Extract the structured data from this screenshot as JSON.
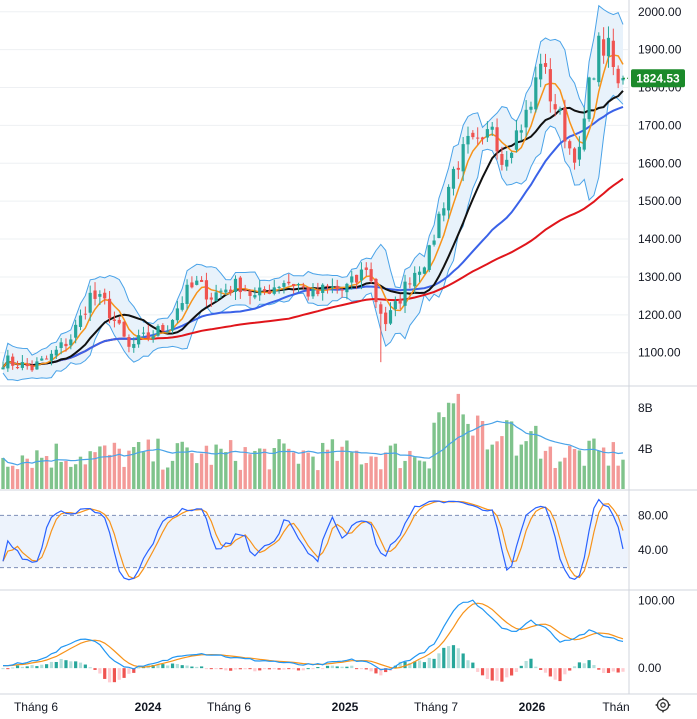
{
  "chart_data": {
    "type": "candlestick",
    "title": "",
    "colors": {
      "up": "#26a69a",
      "down": "#ef5350",
      "bb_line": "#4aa3e8",
      "bb_fill": "#e8f2fb",
      "ma_orange": "#f7931a",
      "ma_black": "#111111",
      "ma_blue": "#3a62e8",
      "ma_red": "#e0151b",
      "last_price_bg": "#1b8a2a",
      "grid": "#eef0f3",
      "separator": "#d1d4dc",
      "dashed": "#7e8fb7"
    },
    "price_axis": {
      "ticks": [
        "2000.00",
        "1900.00",
        "1800.00",
        "1700.00",
        "1600.00",
        "1500.00",
        "1400.00",
        "1300.00",
        "1200.00",
        "1100.00"
      ],
      "range": [
        1020,
        2010
      ]
    },
    "last_price": "1824.53",
    "time_axis": {
      "labels": [
        "Tháng 6",
        "2024",
        "Tháng 6",
        "2025",
        "Tháng 7",
        "2026",
        "Thán"
      ],
      "bold": [
        false,
        true,
        false,
        true,
        false,
        true,
        false
      ]
    },
    "price_anchors": [
      [
        0,
        1080
      ],
      [
        6,
        1060
      ],
      [
        10,
        1090
      ],
      [
        14,
        1140
      ],
      [
        16,
        1190
      ],
      [
        18,
        1250
      ],
      [
        21,
        1230
      ],
      [
        24,
        1160
      ],
      [
        26,
        1110
      ],
      [
        28,
        1130
      ],
      [
        31,
        1150
      ],
      [
        34,
        1170
      ],
      [
        36,
        1220
      ],
      [
        38,
        1260
      ],
      [
        40,
        1280
      ],
      [
        43,
        1250
      ],
      [
        46,
        1270
      ],
      [
        49,
        1280
      ],
      [
        52,
        1245
      ],
      [
        55,
        1270
      ],
      [
        58,
        1290
      ],
      [
        61,
        1280
      ],
      [
        64,
        1250
      ],
      [
        67,
        1270
      ],
      [
        70,
        1265
      ],
      [
        73,
        1290
      ],
      [
        75,
        1330
      ],
      [
        77,
        1240
      ],
      [
        79,
        1180
      ],
      [
        81,
        1220
      ],
      [
        84,
        1300
      ],
      [
        88,
        1360
      ],
      [
        90,
        1460
      ],
      [
        93,
        1580
      ],
      [
        96,
        1650
      ],
      [
        99,
        1640
      ],
      [
        101,
        1710
      ],
      [
        103,
        1610
      ],
      [
        106,
        1680
      ],
      [
        109,
        1750
      ],
      [
        111,
        1880
      ],
      [
        113,
        1780
      ],
      [
        115,
        1720
      ],
      [
        117,
        1640
      ],
      [
        119,
        1620
      ],
      [
        121,
        1800
      ],
      [
        123,
        1910
      ],
      [
        125,
        1900
      ],
      [
        127,
        1800
      ],
      [
        128,
        1825
      ]
    ],
    "volume_axis": {
      "ticks": [
        "8B",
        "4B"
      ],
      "max": 10
    },
    "stoch_axis": {
      "ticks": [
        "80.00",
        "40.00"
      ],
      "range": [
        0,
        100
      ],
      "band": [
        20,
        80
      ]
    },
    "macd_axis": {
      "ticks": [
        "100.00",
        "0.00"
      ],
      "range": [
        -25,
        110
      ]
    },
    "macd_anchors": [
      [
        0,
        3
      ],
      [
        5,
        8
      ],
      [
        10,
        20
      ],
      [
        14,
        38
      ],
      [
        17,
        45
      ],
      [
        20,
        35
      ],
      [
        23,
        10
      ],
      [
        26,
        0
      ],
      [
        29,
        2
      ],
      [
        33,
        10
      ],
      [
        37,
        20
      ],
      [
        40,
        22
      ],
      [
        44,
        20
      ],
      [
        48,
        15
      ],
      [
        52,
        12
      ],
      [
        56,
        10
      ],
      [
        60,
        6
      ],
      [
        64,
        4
      ],
      [
        68,
        8
      ],
      [
        72,
        12
      ],
      [
        75,
        10
      ],
      [
        78,
        -3
      ],
      [
        80,
        0
      ],
      [
        83,
        10
      ],
      [
        86,
        20
      ],
      [
        89,
        35
      ],
      [
        91,
        60
      ],
      [
        94,
        95
      ],
      [
        97,
        100
      ],
      [
        100,
        82
      ],
      [
        103,
        60
      ],
      [
        106,
        55
      ],
      [
        109,
        70
      ],
      [
        112,
        60
      ],
      [
        115,
        40
      ],
      [
        118,
        45
      ],
      [
        121,
        55
      ],
      [
        124,
        48
      ],
      [
        127,
        42
      ],
      [
        128,
        40
      ]
    ]
  }
}
